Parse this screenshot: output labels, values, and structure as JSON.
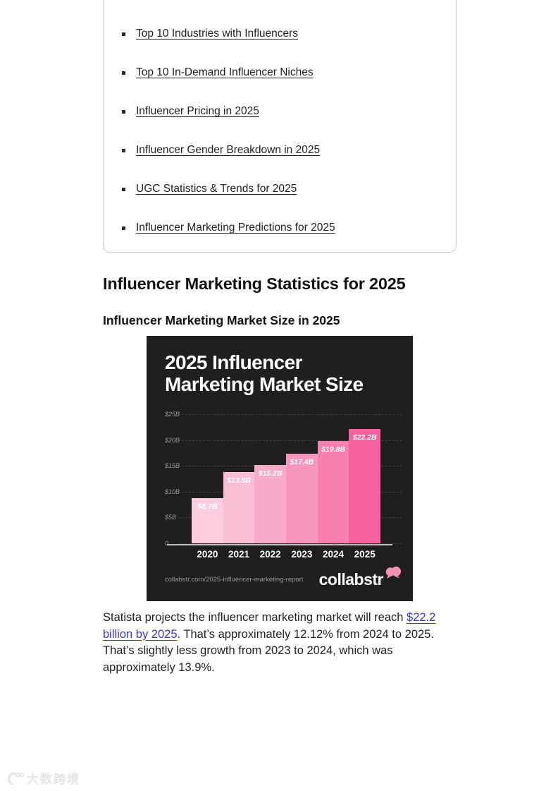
{
  "toc": {
    "items": [
      "Top 10 Industries with Influencers",
      "Top 10 In-Demand Influencer Niches",
      "Influencer Pricing in 2025",
      "Influencer Gender Breakdown in 2025",
      "UGC Statistics & Trends for 2025",
      "Influencer Marketing Predictions for 2025"
    ]
  },
  "headings": {
    "section": "Influencer Marketing Statistics for 2025",
    "subsection": "Influencer Marketing Market Size in 2025"
  },
  "chart_data": {
    "type": "bar",
    "title_lines": [
      "2025 Influencer",
      "Marketing Market Size"
    ],
    "title": "2025 Influencer Marketing Market Size",
    "categories": [
      "2020",
      "2021",
      "2022",
      "2023",
      "2024",
      "2025"
    ],
    "values": [
      8.7,
      13.8,
      15.2,
      17.4,
      19.8,
      22.2
    ],
    "value_labels": [
      "$8.7B",
      "$13.8B",
      "$15.2B",
      "$17.4B",
      "$19.8B",
      "$22.2B"
    ],
    "bar_colors": [
      "#fbcdde",
      "#f9bdd4",
      "#f8abc9",
      "#f797bd",
      "#f780af",
      "#f6619e"
    ],
    "ylim": [
      0,
      25
    ],
    "yticks": [
      {
        "label": "$25B",
        "value": 25
      },
      {
        "label": "$20B",
        "value": 20
      },
      {
        "label": "$15B",
        "value": 15
      },
      {
        "label": "$10B",
        "value": 10
      },
      {
        "label": "$5B",
        "value": 5
      },
      {
        "label": "0",
        "value": 0
      }
    ],
    "grid": "horizontal-dashed",
    "legend": "none",
    "background_color": "#211e1f",
    "footer": {
      "source_url": "collabstr.com/2025-influencer-marketing-report",
      "brand": "collabstr"
    }
  },
  "paragraph": {
    "text_before": "Statista projects the influencer marketing market will reach ",
    "link_text": "$22.2 billion by 2025",
    "text_after": ". That’s approximately 12.12% from 2024 to 2025. That’s slightly less growth from 2023 to 2024, which was approximately 13.9%.",
    "link_color": "#3538c8"
  },
  "watermark": {
    "text": "大数跨境"
  }
}
